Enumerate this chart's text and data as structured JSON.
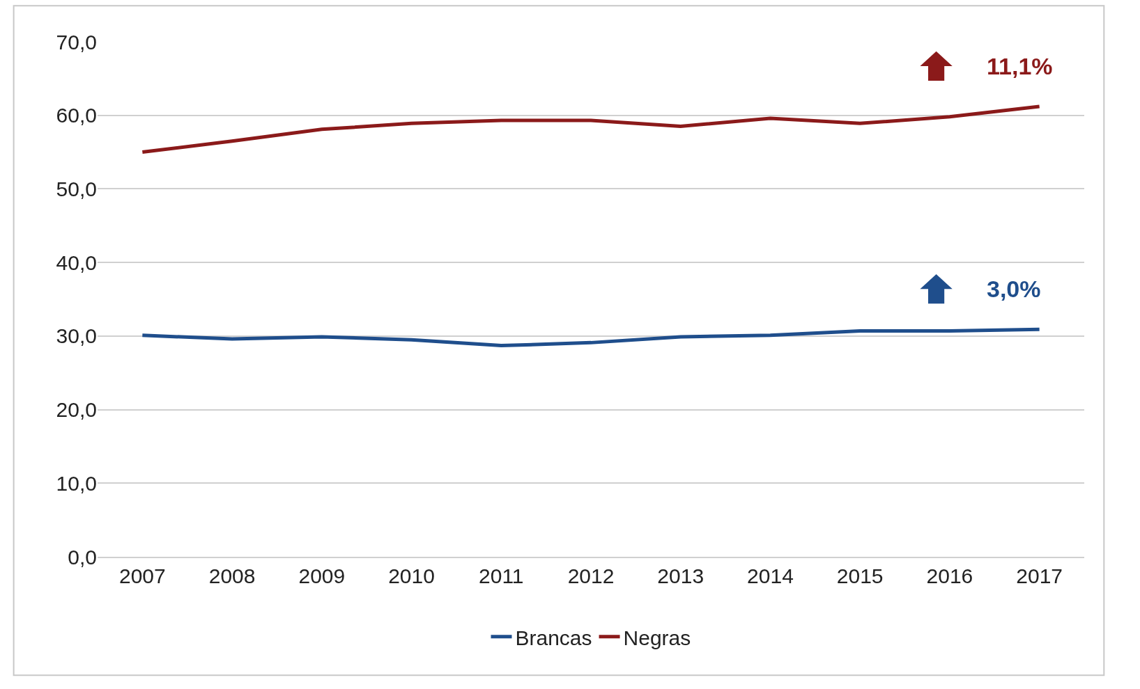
{
  "chart_data": {
    "type": "line",
    "categories": [
      "2007",
      "2008",
      "2009",
      "2010",
      "2011",
      "2012",
      "2013",
      "2014",
      "2015",
      "2016",
      "2017"
    ],
    "series": [
      {
        "name": "Brancas",
        "color": "#1f4e8c",
        "values": [
          30.1,
          29.6,
          29.9,
          29.5,
          28.7,
          29.1,
          29.9,
          30.1,
          30.7,
          30.7,
          30.9
        ]
      },
      {
        "name": "Negras",
        "color": "#8b1a1a",
        "values": [
          55.0,
          56.5,
          58.1,
          58.9,
          59.3,
          59.3,
          58.5,
          59.6,
          58.9,
          59.8,
          61.2
        ]
      }
    ],
    "annotations": [
      "3,0%",
      "11,1%"
    ],
    "ylim": [
      0,
      70
    ],
    "yticks": [
      {
        "value": 0,
        "label": "0,0"
      },
      {
        "value": 10,
        "label": "10,0"
      },
      {
        "value": 20,
        "label": "20,0"
      },
      {
        "value": 30,
        "label": "30,0"
      },
      {
        "value": 40,
        "label": "40,0"
      },
      {
        "value": 50,
        "label": "50,0"
      },
      {
        "value": 60,
        "label": "60,0"
      },
      {
        "value": 70,
        "label": "70,0"
      }
    ],
    "grid": "y",
    "legend": "bottom",
    "marker": "none",
    "line_style": "solid"
  }
}
